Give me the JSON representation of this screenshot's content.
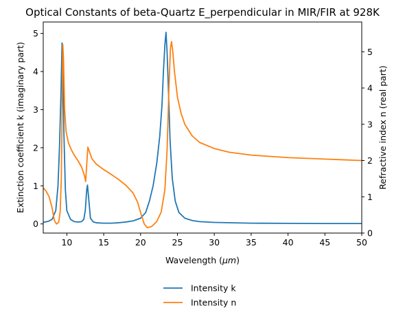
{
  "chart_data": {
    "type": "line",
    "title": "Optical Constants of beta-Quartz E_perpendicular in MIR/FIR at 928K",
    "xlabel": "Wavelength (",
    "xlabel_unit": "μm",
    "xlabel_suffix": ")",
    "ylabel_left": "Extinction coefficient k (imaginary part)",
    "ylabel_right": "Refractive index n (real part)",
    "xlim": [
      6.8,
      50
    ],
    "ylim_left": [
      -0.24,
      5.3
    ],
    "ylim_right": [
      0,
      5.82
    ],
    "x_ticks": [
      "10",
      "15",
      "20",
      "25",
      "30",
      "35",
      "40",
      "45",
      "50"
    ],
    "y_ticks_left": [
      "0",
      "1",
      "2",
      "3",
      "4",
      "5"
    ],
    "y_ticks_right": [
      "0",
      "1",
      "2",
      "3",
      "4",
      "5"
    ],
    "grid": false,
    "legend_position": "below plot, centered",
    "series": [
      {
        "name": "Intensity k",
        "axis": "left",
        "color": "#1f77b4",
        "points": [
          [
            6.8,
            0.04
          ],
          [
            7.5,
            0.07
          ],
          [
            8.0,
            0.12
          ],
          [
            8.5,
            0.35
          ],
          [
            8.8,
            1.0
          ],
          [
            9.0,
            2.0
          ],
          [
            9.2,
            3.4
          ],
          [
            9.35,
            4.75
          ],
          [
            9.45,
            4.4
          ],
          [
            9.6,
            2.4
          ],
          [
            9.8,
            0.9
          ],
          [
            10.0,
            0.35
          ],
          [
            10.5,
            0.12
          ],
          [
            11.0,
            0.06
          ],
          [
            11.5,
            0.05
          ],
          [
            12.0,
            0.06
          ],
          [
            12.3,
            0.12
          ],
          [
            12.5,
            0.35
          ],
          [
            12.7,
            0.9
          ],
          [
            12.8,
            1.02
          ],
          [
            12.95,
            0.7
          ],
          [
            13.2,
            0.15
          ],
          [
            13.6,
            0.05
          ],
          [
            14.0,
            0.03
          ],
          [
            15.0,
            0.02
          ],
          [
            16.0,
            0.02
          ],
          [
            17.0,
            0.03
          ],
          [
            18.0,
            0.05
          ],
          [
            19.0,
            0.08
          ],
          [
            20.0,
            0.15
          ],
          [
            20.7,
            0.3
          ],
          [
            21.2,
            0.6
          ],
          [
            21.7,
            1.0
          ],
          [
            22.2,
            1.6
          ],
          [
            22.6,
            2.3
          ],
          [
            22.9,
            3.1
          ],
          [
            23.1,
            4.0
          ],
          [
            23.3,
            4.7
          ],
          [
            23.45,
            5.03
          ],
          [
            23.6,
            4.5
          ],
          [
            23.8,
            3.4
          ],
          [
            24.0,
            2.2
          ],
          [
            24.3,
            1.2
          ],
          [
            24.7,
            0.6
          ],
          [
            25.2,
            0.3
          ],
          [
            26.0,
            0.15
          ],
          [
            27.0,
            0.09
          ],
          [
            28.0,
            0.06
          ],
          [
            30.0,
            0.04
          ],
          [
            35.0,
            0.02
          ],
          [
            40.0,
            0.015
          ],
          [
            45.0,
            0.01
          ],
          [
            50.0,
            0.01
          ]
        ]
      },
      {
        "name": "Intensity n",
        "axis": "right",
        "color": "#ff7f0e",
        "points": [
          [
            6.8,
            1.25
          ],
          [
            7.2,
            1.15
          ],
          [
            7.6,
            1.0
          ],
          [
            8.0,
            0.7
          ],
          [
            8.3,
            0.35
          ],
          [
            8.6,
            0.25
          ],
          [
            8.9,
            0.3
          ],
          [
            9.1,
            0.6
          ],
          [
            9.25,
            1.5
          ],
          [
            9.35,
            3.2
          ],
          [
            9.45,
            5.2
          ],
          [
            9.55,
            4.8
          ],
          [
            9.7,
            3.4
          ],
          [
            9.9,
            2.8
          ],
          [
            10.2,
            2.5
          ],
          [
            10.6,
            2.3
          ],
          [
            11.0,
            2.15
          ],
          [
            11.5,
            2.0
          ],
          [
            12.0,
            1.82
          ],
          [
            12.4,
            1.58
          ],
          [
            12.55,
            1.42
          ],
          [
            12.7,
            1.9
          ],
          [
            12.85,
            2.37
          ],
          [
            13.0,
            2.28
          ],
          [
            13.4,
            2.05
          ],
          [
            14.0,
            1.9
          ],
          [
            15.0,
            1.75
          ],
          [
            16.0,
            1.62
          ],
          [
            17.0,
            1.48
          ],
          [
            18.0,
            1.32
          ],
          [
            19.0,
            1.1
          ],
          [
            19.6,
            0.85
          ],
          [
            20.1,
            0.5
          ],
          [
            20.5,
            0.25
          ],
          [
            20.9,
            0.15
          ],
          [
            21.5,
            0.18
          ],
          [
            22.2,
            0.32
          ],
          [
            22.8,
            0.58
          ],
          [
            23.3,
            1.2
          ],
          [
            23.6,
            2.3
          ],
          [
            23.85,
            4.0
          ],
          [
            24.05,
            5.1
          ],
          [
            24.2,
            5.28
          ],
          [
            24.35,
            5.05
          ],
          [
            24.6,
            4.45
          ],
          [
            25.0,
            3.75
          ],
          [
            25.5,
            3.3
          ],
          [
            26.0,
            3.0
          ],
          [
            27.0,
            2.68
          ],
          [
            28.0,
            2.5
          ],
          [
            30.0,
            2.33
          ],
          [
            32.0,
            2.23
          ],
          [
            35.0,
            2.15
          ],
          [
            40.0,
            2.08
          ],
          [
            45.0,
            2.04
          ],
          [
            50.0,
            2.0
          ]
        ]
      }
    ]
  }
}
